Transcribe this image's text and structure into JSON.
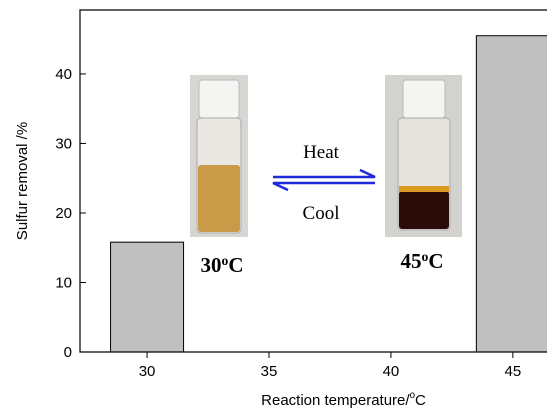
{
  "chart_data": {
    "type": "bar",
    "x": [
      30,
      45
    ],
    "values": [
      15.8,
      45.5
    ],
    "color": "#c0c0c0",
    "xlim": [
      27.25,
      46.4
    ],
    "ylim": [
      0,
      49.2
    ],
    "xticks": [
      30,
      35,
      40,
      45
    ],
    "yticks": [
      0,
      10,
      20,
      30,
      40
    ],
    "xlabel": {
      "text": "Reaction temperature/",
      "sup": "o",
      "tail": "C"
    },
    "ylabel": "Sulfur removal /%",
    "annotations": [
      {
        "text": "Heat"
      },
      {
        "text": "Cool"
      },
      {
        "text": "30",
        "sup": "o",
        "tail": "C"
      },
      {
        "text": "45",
        "sup": "o",
        "tail": "C"
      }
    ]
  }
}
